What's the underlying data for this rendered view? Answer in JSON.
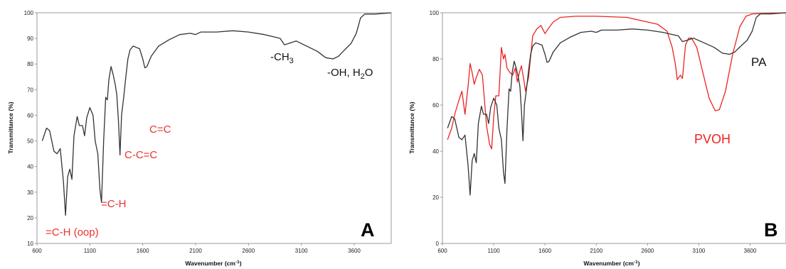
{
  "chart_data": [
    {
      "type": "line",
      "panel_label": "A",
      "xlabel_main": "Wavenumber (cm",
      "xlabel_sup": "-1",
      "xlabel_end": ")",
      "ylabel": "Transmittance (%)",
      "xlim": [
        600,
        3950
      ],
      "ylim": [
        10,
        100
      ],
      "x_ticks": [
        600,
        1100,
        1600,
        2100,
        2600,
        3100,
        3600
      ],
      "y_ticks": [
        10,
        20,
        30,
        40,
        50,
        60,
        70,
        80,
        90,
        100
      ],
      "grid": false,
      "colors": {
        "PA": "#333333",
        "annotation_red": "#e8322e",
        "annotation_black": "#111111"
      },
      "series": [
        {
          "id": "PA",
          "color": "#333333",
          "points": [
            [
              650,
              50
            ],
            [
              690,
              55
            ],
            [
              720,
              54
            ],
            [
              760,
              46
            ],
            [
              790,
              45
            ],
            [
              820,
              47
            ],
            [
              850,
              34
            ],
            [
              870,
              21
            ],
            [
              890,
              36
            ],
            [
              910,
              39
            ],
            [
              930,
              35
            ],
            [
              950,
              52
            ],
            [
              980,
              59.5
            ],
            [
              1000,
              56
            ],
            [
              1030,
              56
            ],
            [
              1050,
              52
            ],
            [
              1070,
              59
            ],
            [
              1100,
              63
            ],
            [
              1130,
              60
            ],
            [
              1150,
              50
            ],
            [
              1175,
              45
            ],
            [
              1195,
              31
            ],
            [
              1210,
              26
            ],
            [
              1230,
              50
            ],
            [
              1250,
              67
            ],
            [
              1265,
              66
            ],
            [
              1280,
              74
            ],
            [
              1300,
              79
            ],
            [
              1320,
              76
            ],
            [
              1340,
              72
            ],
            [
              1355,
              68
            ],
            [
              1370,
              58
            ],
            [
              1385,
              44.5
            ],
            [
              1400,
              60
            ],
            [
              1420,
              67
            ],
            [
              1440,
              75
            ],
            [
              1460,
              82
            ],
            [
              1480,
              85.5
            ],
            [
              1510,
              87
            ],
            [
              1540,
              86.5
            ],
            [
              1570,
              86
            ],
            [
              1600,
              82
            ],
            [
              1620,
              78.5
            ],
            [
              1640,
              79
            ],
            [
              1680,
              83
            ],
            [
              1750,
              87
            ],
            [
              1850,
              89.5
            ],
            [
              1950,
              91.5
            ],
            [
              2050,
              92
            ],
            [
              2100,
              91.5
            ],
            [
              2150,
              92.5
            ],
            [
              2300,
              92.5
            ],
            [
              2450,
              93
            ],
            [
              2600,
              92.5
            ],
            [
              2750,
              91.5
            ],
            [
              2850,
              90.5
            ],
            [
              2900,
              90
            ],
            [
              2940,
              87.5
            ],
            [
              2980,
              88
            ],
            [
              3050,
              89
            ],
            [
              3150,
              87
            ],
            [
              3250,
              85
            ],
            [
              3330,
              82.5
            ],
            [
              3400,
              82
            ],
            [
              3450,
              83
            ],
            [
              3520,
              86
            ],
            [
              3570,
              88
            ],
            [
              3620,
              92
            ],
            [
              3660,
              98
            ],
            [
              3700,
              99.5
            ],
            [
              3800,
              99.5
            ],
            [
              3950,
              100
            ]
          ]
        }
      ],
      "annotations": [
        {
          "id": "c-eq-c",
          "text": "C=C",
          "color": "red"
        },
        {
          "id": "c-c-eq-c",
          "text": "C-C=C",
          "color": "red"
        },
        {
          "id": "eq-c-h",
          "text": "=C-H",
          "color": "red"
        },
        {
          "id": "eq-c-h-oop",
          "text": "=C-H (oop)",
          "color": "red"
        },
        {
          "id": "ch3",
          "text": "-CH",
          "sub": "3",
          "color": "black"
        },
        {
          "id": "oh-h2o",
          "text": "-OH, H",
          "sub": "2",
          "text_end": "O",
          "color": "black"
        }
      ]
    },
    {
      "type": "line",
      "panel_label": "B",
      "xlabel_main": "Wavenumber (cm",
      "xlabel_sup": "-1",
      "xlabel_end": ")",
      "ylabel": "Transmittance (%)",
      "xlim": [
        600,
        3950
      ],
      "ylim": [
        0,
        100
      ],
      "x_ticks": [
        600,
        1100,
        1600,
        2100,
        2600,
        3100,
        3600
      ],
      "y_ticks": [
        0,
        20,
        40,
        60,
        80,
        100
      ],
      "grid": false,
      "colors": {
        "PA": "#333333",
        "PVOH": "#ee2222"
      },
      "series": [
        {
          "id": "PVOH",
          "name": "PVOH",
          "color": "#ee2222",
          "points": [
            [
              650,
              45
            ],
            [
              690,
              50
            ],
            [
              720,
              56
            ],
            [
              760,
              62
            ],
            [
              790,
              66
            ],
            [
              820,
              56
            ],
            [
              850,
              68
            ],
            [
              870,
              78
            ],
            [
              890,
              74
            ],
            [
              910,
              69
            ],
            [
              930,
              72
            ],
            [
              960,
              75.5
            ],
            [
              990,
              73
            ],
            [
              1010,
              62
            ],
            [
              1030,
              51
            ],
            [
              1060,
              43
            ],
            [
              1080,
              41
            ],
            [
              1100,
              55
            ],
            [
              1120,
              64
            ],
            [
              1150,
              64
            ],
            [
              1175,
              85
            ],
            [
              1195,
              80
            ],
            [
              1210,
              82
            ],
            [
              1230,
              76
            ],
            [
              1260,
              74
            ],
            [
              1285,
              73
            ],
            [
              1310,
              76
            ],
            [
              1330,
              70
            ],
            [
              1350,
              74
            ],
            [
              1370,
              77
            ],
            [
              1390,
              72
            ],
            [
              1410,
              66
            ],
            [
              1440,
              72
            ],
            [
              1480,
              90
            ],
            [
              1520,
              93
            ],
            [
              1560,
              94.5
            ],
            [
              1600,
              91
            ],
            [
              1630,
              93
            ],
            [
              1680,
              96
            ],
            [
              1750,
              98
            ],
            [
              1900,
              98.5
            ],
            [
              2100,
              98.5
            ],
            [
              2400,
              98
            ],
            [
              2600,
              96
            ],
            [
              2700,
              95
            ],
            [
              2790,
              92
            ],
            [
              2840,
              85
            ],
            [
              2870,
              78
            ],
            [
              2890,
              71
            ],
            [
              2920,
              73
            ],
            [
              2940,
              71.5
            ],
            [
              2970,
              86
            ],
            [
              3000,
              89
            ],
            [
              3030,
              89
            ],
            [
              3080,
              85
            ],
            [
              3140,
              74
            ],
            [
              3200,
              63
            ],
            [
              3260,
              57.5
            ],
            [
              3300,
              58
            ],
            [
              3360,
              66
            ],
            [
              3430,
              82
            ],
            [
              3500,
              94
            ],
            [
              3560,
              98.5
            ],
            [
              3620,
              99.5
            ],
            [
              3950,
              100
            ]
          ]
        },
        {
          "id": "PA",
          "name": "PA",
          "color": "#333333",
          "points": [
            [
              650,
              50
            ],
            [
              690,
              55
            ],
            [
              720,
              54
            ],
            [
              760,
              46
            ],
            [
              790,
              45
            ],
            [
              820,
              47
            ],
            [
              850,
              34
            ],
            [
              870,
              21
            ],
            [
              890,
              36
            ],
            [
              910,
              39
            ],
            [
              930,
              35
            ],
            [
              950,
              52
            ],
            [
              980,
              59.5
            ],
            [
              1000,
              56
            ],
            [
              1030,
              56
            ],
            [
              1050,
              52
            ],
            [
              1070,
              59
            ],
            [
              1100,
              63
            ],
            [
              1130,
              60
            ],
            [
              1150,
              50
            ],
            [
              1175,
              45
            ],
            [
              1195,
              31
            ],
            [
              1210,
              26
            ],
            [
              1230,
              50
            ],
            [
              1250,
              67
            ],
            [
              1265,
              66
            ],
            [
              1280,
              74
            ],
            [
              1300,
              79
            ],
            [
              1320,
              76
            ],
            [
              1340,
              72
            ],
            [
              1355,
              68
            ],
            [
              1370,
              58
            ],
            [
              1385,
              44.5
            ],
            [
              1400,
              60
            ],
            [
              1420,
              67
            ],
            [
              1440,
              75
            ],
            [
              1460,
              82
            ],
            [
              1480,
              85.5
            ],
            [
              1510,
              87
            ],
            [
              1540,
              86.5
            ],
            [
              1570,
              86
            ],
            [
              1600,
              82
            ],
            [
              1620,
              78.5
            ],
            [
              1640,
              79
            ],
            [
              1680,
              83
            ],
            [
              1750,
              87
            ],
            [
              1850,
              89.5
            ],
            [
              1950,
              91.5
            ],
            [
              2050,
              92
            ],
            [
              2100,
              91.5
            ],
            [
              2150,
              92.5
            ],
            [
              2300,
              92.5
            ],
            [
              2450,
              93
            ],
            [
              2600,
              92.5
            ],
            [
              2750,
              91.5
            ],
            [
              2850,
              90.5
            ],
            [
              2900,
              90
            ],
            [
              2940,
              87.5
            ],
            [
              2980,
              88
            ],
            [
              3050,
              89
            ],
            [
              3150,
              87
            ],
            [
              3250,
              85
            ],
            [
              3330,
              82.5
            ],
            [
              3400,
              82
            ],
            [
              3450,
              83
            ],
            [
              3520,
              86
            ],
            [
              3570,
              88
            ],
            [
              3620,
              92
            ],
            [
              3660,
              98
            ],
            [
              3700,
              99.5
            ],
            [
              3800,
              99.5
            ],
            [
              3950,
              100
            ]
          ]
        }
      ]
    }
  ]
}
